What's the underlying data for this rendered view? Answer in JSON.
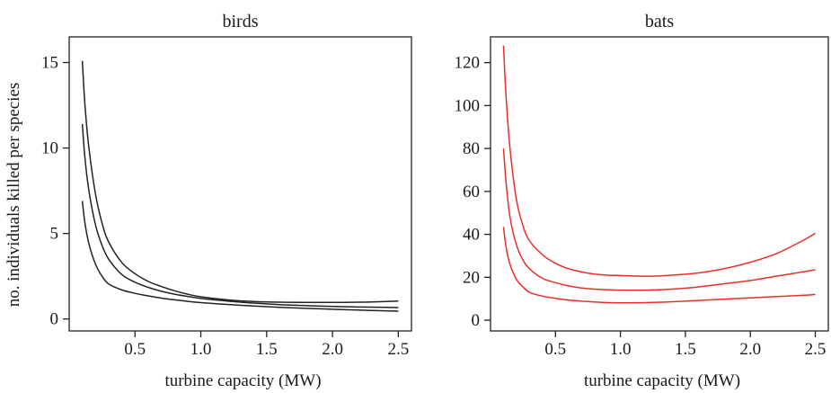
{
  "chart_data": [
    {
      "type": "line",
      "title": "birds",
      "xlabel": "turbine capacity (MW)",
      "ylabel": "no. individuals killed per species",
      "xlim": [
        0,
        2.6
      ],
      "ylim": [
        -0.7,
        16.5
      ],
      "xticks": [
        "0.5",
        "1.0",
        "1.5",
        "2.0",
        "2.5"
      ],
      "yticks": [
        "0",
        "5",
        "10",
        "15"
      ],
      "line_color": "#222222",
      "grid": false,
      "series": [
        {
          "x": [
            0.1,
            0.12,
            0.15,
            0.2,
            0.25,
            0.3,
            0.4,
            0.5,
            0.6,
            0.7,
            0.8,
            0.9,
            1.0,
            1.2,
            1.4,
            1.6,
            1.8,
            2.0,
            2.2,
            2.4,
            2.5
          ],
          "y": [
            15.1,
            12.5,
            10.0,
            7.3,
            5.6,
            4.5,
            3.3,
            2.65,
            2.2,
            1.9,
            1.65,
            1.45,
            1.3,
            1.12,
            1.02,
            0.98,
            0.97,
            0.97,
            0.98,
            1.02,
            1.05
          ]
        },
        {
          "x": [
            0.1,
            0.12,
            0.15,
            0.2,
            0.25,
            0.3,
            0.4,
            0.5,
            0.6,
            0.7,
            0.8,
            0.9,
            1.0,
            1.2,
            1.4,
            1.6,
            1.8,
            2.0,
            2.2,
            2.4,
            2.5
          ],
          "y": [
            11.4,
            9.4,
            7.5,
            5.5,
            4.3,
            3.5,
            2.6,
            2.15,
            1.85,
            1.62,
            1.45,
            1.32,
            1.2,
            1.05,
            0.93,
            0.84,
            0.78,
            0.73,
            0.7,
            0.68,
            0.67
          ]
        },
        {
          "x": [
            0.1,
            0.12,
            0.15,
            0.2,
            0.25,
            0.3,
            0.4,
            0.5,
            0.6,
            0.7,
            0.8,
            0.9,
            1.0,
            1.2,
            1.4,
            1.6,
            1.8,
            2.0,
            2.2,
            2.4,
            2.5
          ],
          "y": [
            6.9,
            5.6,
            4.4,
            3.2,
            2.5,
            2.05,
            1.7,
            1.5,
            1.35,
            1.22,
            1.12,
            1.03,
            0.96,
            0.85,
            0.76,
            0.68,
            0.62,
            0.57,
            0.52,
            0.48,
            0.46
          ]
        }
      ]
    },
    {
      "type": "line",
      "title": "bats",
      "xlabel": "turbine capacity (MW)",
      "ylabel": "",
      "xlim": [
        0,
        2.6
      ],
      "ylim": [
        -5,
        132
      ],
      "xticks": [
        "0.5",
        "1.0",
        "1.5",
        "2.0",
        "2.5"
      ],
      "yticks": [
        "0",
        "20",
        "40",
        "60",
        "80",
        "100",
        "120"
      ],
      "line_color": "#e8302a",
      "grid": false,
      "series": [
        {
          "x": [
            0.1,
            0.12,
            0.15,
            0.2,
            0.25,
            0.3,
            0.4,
            0.5,
            0.6,
            0.7,
            0.8,
            0.9,
            1.0,
            1.2,
            1.4,
            1.6,
            1.8,
            2.0,
            2.2,
            2.4,
            2.5
          ],
          "y": [
            128,
            104,
            80,
            56,
            44,
            37,
            30.5,
            26.5,
            24,
            22.5,
            21.5,
            21,
            20.8,
            20.5,
            21,
            22,
            24,
            27,
            31,
            37,
            40.5
          ]
        },
        {
          "x": [
            0.1,
            0.12,
            0.15,
            0.2,
            0.25,
            0.3,
            0.4,
            0.5,
            0.6,
            0.7,
            0.8,
            0.9,
            1.0,
            1.2,
            1.4,
            1.6,
            1.8,
            2.0,
            2.2,
            2.4,
            2.5
          ],
          "y": [
            80,
            64,
            48,
            35,
            28,
            24,
            19.5,
            17.5,
            16,
            15,
            14.5,
            14.2,
            14,
            14,
            14.5,
            15.5,
            17,
            18.5,
            20.5,
            22.5,
            23.5
          ]
        },
        {
          "x": [
            0.1,
            0.12,
            0.15,
            0.2,
            0.25,
            0.3,
            0.4,
            0.5,
            0.6,
            0.7,
            0.8,
            0.9,
            1.0,
            1.2,
            1.4,
            1.6,
            1.8,
            2.0,
            2.2,
            2.4,
            2.5
          ],
          "y": [
            43.5,
            34,
            26,
            19,
            15.5,
            13,
            11.2,
            10.2,
            9.4,
            8.9,
            8.5,
            8.2,
            8.1,
            8.2,
            8.6,
            9.2,
            9.8,
            10.4,
            11,
            11.6,
            12
          ]
        }
      ]
    }
  ]
}
